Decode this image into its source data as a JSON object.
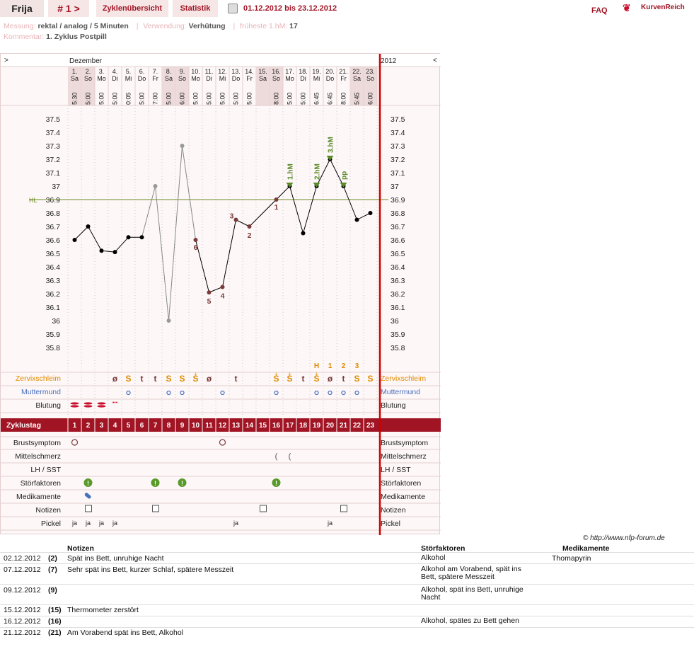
{
  "header": {
    "cycle_name": "Frija",
    "cycle_number": "# 1 >",
    "tab_overview": "Zyklenübersicht",
    "tab_stats": "Statistik",
    "date_range": "01.12.2012 bis 23.12.2012",
    "faq": "FAQ",
    "logo_text": "KurvenReich"
  },
  "info": {
    "measure_label": "Messung:",
    "measure_value": "rektal / analog / 5 Minuten",
    "use_label": "Verwendung:",
    "use_value": "Verhütung",
    "earliest_label": "früheste 1.hM:",
    "earliest_value": "17",
    "comment_label": "Kommentar:",
    "comment_value": "1. Zyklus Postpill"
  },
  "chart_header": {
    "prev": ">",
    "next": "<",
    "month": "Dezember",
    "year": "2012"
  },
  "days": [
    {
      "d": "1.",
      "w": "Sa",
      "t": "5:30"
    },
    {
      "d": "2.",
      "w": "So",
      "t": "5:00"
    },
    {
      "d": "3.",
      "w": "Mo",
      "t": "5:00"
    },
    {
      "d": "4.",
      "w": "Di",
      "t": "5:00"
    },
    {
      "d": "5.",
      "w": "Mi",
      "t": "0:05"
    },
    {
      "d": "6.",
      "w": "Do",
      "t": "5:00"
    },
    {
      "d": "7.",
      "w": "Fr",
      "t": "7:00"
    },
    {
      "d": "8.",
      "w": "Sa",
      "t": "5:00"
    },
    {
      "d": "9.",
      "w": "So",
      "t": "6:00"
    },
    {
      "d": "10.",
      "w": "Mo",
      "t": "5:00"
    },
    {
      "d": "11.",
      "w": "Di",
      "t": "5:00"
    },
    {
      "d": "12.",
      "w": "Mi",
      "t": "5:00"
    },
    {
      "d": "13.",
      "w": "Do",
      "t": "5:00"
    },
    {
      "d": "14.",
      "w": "Fr",
      "t": "5:00"
    },
    {
      "d": "15.",
      "w": "Sa",
      "t": ""
    },
    {
      "d": "16.",
      "w": "So",
      "t": "8:00"
    },
    {
      "d": "17.",
      "w": "Mo",
      "t": "5:00"
    },
    {
      "d": "18.",
      "w": "Di",
      "t": "5:00"
    },
    {
      "d": "19.",
      "w": "Mi",
      "t": "6:45"
    },
    {
      "d": "20.",
      "w": "Do",
      "t": "6:45"
    },
    {
      "d": "21.",
      "w": "Fr",
      "t": "8:00"
    },
    {
      "d": "22.",
      "w": "Sa",
      "t": "5:45"
    },
    {
      "d": "23.",
      "w": "So",
      "t": "6:00"
    }
  ],
  "chart_data": {
    "type": "line",
    "ylim": [
      35.8,
      37.5
    ],
    "y_ticks": [
      "37.5",
      "37.4",
      "37.3",
      "37.2",
      "37.1",
      "37",
      "36.9",
      "36.8",
      "36.7",
      "36.6",
      "36.5",
      "36.4",
      "36.3",
      "36.2",
      "36.1",
      "36",
      "35.9",
      "35.8"
    ],
    "hl_label": "HL",
    "hl_value": 36.9,
    "temps": [
      36.6,
      36.7,
      36.52,
      36.51,
      36.62,
      36.62,
      37.0,
      36.0,
      37.3,
      36.6,
      36.21,
      36.25,
      36.75,
      36.7,
      null,
      36.9,
      37.0,
      36.65,
      37.0,
      37.2,
      37.0,
      36.75,
      36.8
    ],
    "excluded_days": [
      7,
      8,
      9
    ],
    "count_labels": [
      {
        "day": 10,
        "text": "6"
      },
      {
        "day": 11,
        "text": "5"
      },
      {
        "day": 12,
        "text": "4"
      },
      {
        "day": 13,
        "text": "3"
      },
      {
        "day": 14,
        "text": "2"
      },
      {
        "day": 16,
        "text": "1"
      }
    ],
    "hm_markers": [
      {
        "day": 17,
        "text": "1.hM"
      },
      {
        "day": 19,
        "text": "2.hM"
      },
      {
        "day": 20,
        "text": "3.hM"
      },
      {
        "day": 21,
        "text": "pp"
      }
    ],
    "line_color": "#000000",
    "excluded_color": "#888888",
    "accent": "#a01424",
    "hl_color": "#6b8e23"
  },
  "rows": {
    "zervix": "Zervixschleim",
    "muttermund": "Muttermund",
    "blutung": "Blutung",
    "zyklustag": "Zyklustag",
    "brust": "Brustsymptom",
    "mittelschmerz": "Mittelschmerz",
    "lh": "LH / SST",
    "stoer": "Störfaktoren",
    "medi": "Medikamente",
    "notizen": "Notizen",
    "pickel": "Pickel"
  },
  "peak_labels": [
    {
      "day": 19,
      "text": "H"
    },
    {
      "day": 20,
      "text": "1"
    },
    {
      "day": 21,
      "text": "2"
    },
    {
      "day": 22,
      "text": "3"
    }
  ],
  "zervix_values": [
    {
      "day": 4,
      "text": "ø"
    },
    {
      "day": 5,
      "text": "S"
    },
    {
      "day": 6,
      "text": "t"
    },
    {
      "day": 7,
      "text": "t"
    },
    {
      "day": 8,
      "text": "S"
    },
    {
      "day": 9,
      "text": "S"
    },
    {
      "day": 10,
      "text": "S"
    },
    {
      "day": 11,
      "text": "ø"
    },
    {
      "day": 13,
      "text": "t"
    },
    {
      "day": 16,
      "text": "S"
    },
    {
      "day": 17,
      "text": "S"
    },
    {
      "day": 18,
      "text": "t"
    },
    {
      "day": 19,
      "text": "S"
    },
    {
      "day": 20,
      "text": "ø"
    },
    {
      "day": 21,
      "text": "t"
    },
    {
      "day": 22,
      "text": "S"
    },
    {
      "day": 23,
      "text": "S"
    }
  ],
  "zervix_plus_days": [
    10,
    16,
    17,
    19
  ],
  "muttermund_days": [
    5,
    8,
    9,
    12,
    16,
    19,
    20,
    21,
    22
  ],
  "blutung_days": [
    1,
    2,
    3
  ],
  "blutung_spot_days": [
    4
  ],
  "brust_days": [
    1,
    12
  ],
  "mittelschmerz_days": [
    16,
    17
  ],
  "stoer_days": [
    2,
    7,
    9,
    16
  ],
  "medi_days": [
    2
  ],
  "notiz_days": [
    2,
    7,
    15,
    21
  ],
  "pickel": [
    {
      "day": 1,
      "text": "ja"
    },
    {
      "day": 2,
      "text": "ja"
    },
    {
      "day": 3,
      "text": "ja"
    },
    {
      "day": 4,
      "text": "ja"
    },
    {
      "day": 13,
      "text": "ja"
    },
    {
      "day": 20,
      "text": "ja"
    }
  ],
  "credit": "© http://www.nfp-forum.de",
  "notes_table": {
    "headers": {
      "notes": "Notizen",
      "stoer": "Störfaktoren",
      "medi": "Medikamente"
    },
    "rows": [
      {
        "date": "02.12.2012",
        "day": "(2)",
        "note": "Spät ins Bett, unruhige Nacht",
        "stoer": "Alkohol",
        "medi": "Thomapyrin"
      },
      {
        "date": "07.12.2012",
        "day": "(7)",
        "note": "Sehr spät ins Bett, kurzer Schlaf, spätere Messzeit",
        "stoer": "Alkohol am Vorabend, spät ins Bett, spätere Messzeit",
        "medi": ""
      },
      {
        "date": "09.12.2012",
        "day": "(9)",
        "note": "",
        "stoer": "Alkohol, spät ins Bett, unruhige Nacht",
        "medi": ""
      },
      {
        "date": "15.12.2012",
        "day": "(15)",
        "note": "Thermometer zerstört",
        "stoer": "",
        "medi": ""
      },
      {
        "date": "16.12.2012",
        "day": "(16)",
        "note": "",
        "stoer": "Alkohol, spätes zu Bett gehen",
        "medi": ""
      },
      {
        "date": "21.12.2012",
        "day": "(21)",
        "note": "Am Vorabend spät ins Bett, Alkohol",
        "stoer": "",
        "medi": ""
      }
    ]
  }
}
